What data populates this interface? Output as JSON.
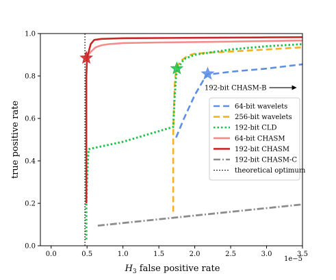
{
  "chart_data": {
    "type": "line",
    "xlabel_prefix": "H",
    "xlabel_subscript": "3",
    "xlabel_suffix": " false positive rate",
    "ylabel": "true positive rate",
    "x_offset_text": "1e−5",
    "xlim": [
      -0.15,
      3.5
    ],
    "ylim": [
      0.0,
      1.0
    ],
    "xticks": [
      0.0,
      0.5,
      1.0,
      1.5,
      2.0,
      2.5,
      3.0,
      3.5
    ],
    "xtick_labels": [
      "0.0",
      "0.5",
      "1.0",
      "1.5",
      "2.0",
      "2.5",
      "3.0",
      "3.5"
    ],
    "yticks": [
      0.0,
      0.2,
      0.4,
      0.6,
      0.8,
      1.0
    ],
    "ytick_labels": [
      "0.0",
      "0.2",
      "0.4",
      "0.6",
      "0.8",
      "1.0"
    ],
    "grid": false,
    "legend_position": "right",
    "annotation": {
      "text": "192-bit CHASM-B",
      "x": 3.0,
      "y": 0.745,
      "arrow_to_x": 3.42
    },
    "series": [
      {
        "name": "64-bit wavelets",
        "color": "#5b8ee6",
        "dash": "9,5",
        "width": 2.6,
        "x": [
          1.74,
          1.85,
          2.0,
          2.12,
          2.18,
          2.26,
          2.5,
          3.0,
          3.5
        ],
        "y": [
          0.51,
          0.6,
          0.71,
          0.78,
          0.81,
          0.81,
          0.82,
          0.835,
          0.855
        ],
        "star": [
          2.18,
          0.81
        ]
      },
      {
        "name": "256-bit wavelets",
        "color": "#f6b021",
        "dash": "9,5",
        "width": 2.6,
        "x": [
          1.7,
          1.7,
          1.71,
          1.72,
          1.73,
          1.75,
          1.8,
          1.9,
          2.0,
          2.2,
          2.5,
          3.0,
          3.5
        ],
        "y": [
          0.16,
          0.52,
          0.65,
          0.75,
          0.8,
          0.84,
          0.87,
          0.895,
          0.905,
          0.91,
          0.915,
          0.925,
          0.935
        ]
      },
      {
        "name": "192-bit CLD",
        "color": "#1fc14a",
        "dash": "2.5,3",
        "width": 3,
        "x": [
          0.49,
          0.49,
          0.5,
          0.51,
          0.52,
          0.52,
          1.0,
          1.5,
          1.7,
          1.72,
          1.74,
          1.76,
          1.85,
          2.0,
          2.5,
          3.0,
          3.5
        ],
        "y": [
          0.03,
          0.2,
          0.3,
          0.4,
          0.44,
          0.455,
          0.49,
          0.54,
          0.56,
          0.7,
          0.8,
          0.835,
          0.88,
          0.9,
          0.925,
          0.94,
          0.95
        ],
        "star": [
          1.75,
          0.835
        ]
      },
      {
        "name": "64-bit CHASM",
        "color": "#f48c8c",
        "dash": "",
        "width": 2.6,
        "x": [
          0.47,
          0.48,
          0.5,
          0.53,
          0.57,
          0.62,
          0.7,
          0.8,
          1.0,
          1.5,
          2.0,
          2.5,
          3.0,
          3.5
        ],
        "y": [
          0.885,
          0.89,
          0.895,
          0.905,
          0.92,
          0.935,
          0.945,
          0.95,
          0.955,
          0.958,
          0.96,
          0.962,
          0.965,
          0.967
        ]
      },
      {
        "name": "192-bit CHASM",
        "color": "#cc2727",
        "dash": "",
        "width": 2.6,
        "x": [
          0.49,
          0.49,
          0.5,
          0.52,
          0.55,
          0.6,
          0.7,
          1.0,
          2.0,
          3.0,
          3.5
        ],
        "y": [
          0.2,
          0.8,
          0.885,
          0.91,
          0.95,
          0.97,
          0.975,
          0.978,
          0.98,
          0.982,
          0.983
        ],
        "star": [
          0.49,
          0.885
        ]
      },
      {
        "name": "192-bit CHASM-C",
        "color": "#8c8c8c",
        "dash": "10,3,2,3",
        "width": 2.8,
        "x": [
          0.65,
          1.5,
          2.5,
          3.5
        ],
        "y": [
          0.095,
          0.125,
          0.16,
          0.195
        ]
      },
      {
        "name": "theoretical optimum",
        "color": "#000000",
        "dash": "2,2",
        "width": 1,
        "x": [
          0.47,
          0.47
        ],
        "y": [
          0.0,
          1.0
        ]
      }
    ]
  }
}
